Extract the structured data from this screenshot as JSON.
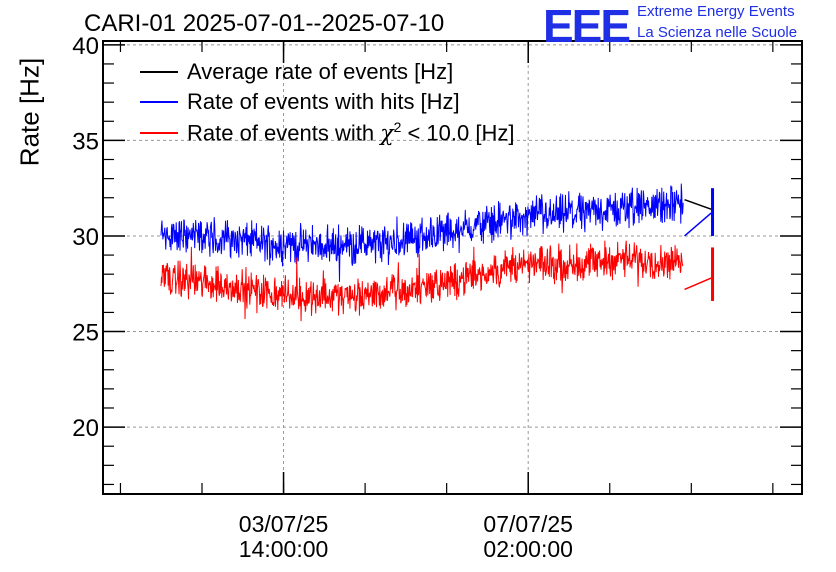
{
  "title": "CARI-01 2025-07-01--2025-07-10",
  "logo": {
    "mark": "EEE",
    "line1": "Extreme Energy Events",
    "line2": "La Scienza nelle Scuole",
    "color": "#1f2fe6"
  },
  "legend": [
    {
      "label": "Average rate of events [Hz]",
      "color": "#000000"
    },
    {
      "label": "Rate of events with hits [Hz]",
      "color": "#0000ff"
    },
    {
      "label_prefix": "Rate of events with ",
      "label_symbol": "χ",
      "label_sup": "2",
      "label_suffix": " < 10.0 [Hz]",
      "color": "#ff0000"
    }
  ],
  "chart_data": {
    "type": "line",
    "title": "CARI-01 2025-07-01--2025-07-10",
    "ylabel": "Rate [Hz]",
    "xlabel": "",
    "ylim": [
      16.5,
      40.2
    ],
    "yticks": [
      20,
      25,
      30,
      35,
      40
    ],
    "xlim_days": [
      0,
      10
    ],
    "xticks": [
      {
        "day": 2.583,
        "label_date": "03/07/25",
        "label_time": "14:00:00"
      },
      {
        "day": 6.083,
        "label_date": "07/07/25",
        "label_time": "02:00:00"
      }
    ],
    "grid": true,
    "series": [
      {
        "name": "Average rate of events [Hz]",
        "color": "#000000",
        "points": [
          [
            8.32,
            31.9
          ],
          [
            8.7,
            31.4
          ]
        ]
      },
      {
        "name": "Rate of events with hits [Hz]",
        "color": "#0000ff",
        "t_start": 0.83,
        "t_end": 8.3,
        "trend": [
          [
            0.83,
            30.1
          ],
          [
            1.5,
            30.0
          ],
          [
            2.5,
            29.6
          ],
          [
            3.3,
            29.5
          ],
          [
            4.0,
            29.6
          ],
          [
            5.0,
            30.3
          ],
          [
            5.8,
            30.9
          ],
          [
            6.5,
            31.1
          ],
          [
            7.4,
            31.4
          ],
          [
            8.3,
            31.7
          ]
        ],
        "noise_amplitude": 1.2,
        "gap_segment": [
          [
            8.32,
            30.0
          ],
          [
            8.7,
            31.2
          ]
        ],
        "tail_range": [
          8.72,
          30.0,
          32.5
        ]
      },
      {
        "name": "Rate of events with χ2 < 10.0 [Hz]",
        "color": "#ff0000",
        "t_start": 0.83,
        "t_end": 8.3,
        "trend": [
          [
            0.83,
            27.9
          ],
          [
            1.5,
            27.5
          ],
          [
            2.5,
            27.0
          ],
          [
            3.3,
            26.8
          ],
          [
            4.0,
            27.0
          ],
          [
            5.0,
            27.6
          ],
          [
            5.8,
            28.4
          ],
          [
            6.5,
            28.5
          ],
          [
            7.4,
            28.8
          ],
          [
            8.3,
            28.6
          ]
        ],
        "noise_amplitude": 1.1,
        "gap_segment": [
          [
            8.32,
            27.2
          ],
          [
            8.7,
            27.8
          ]
        ],
        "tail_range": [
          8.72,
          26.6,
          29.4
        ]
      }
    ]
  }
}
